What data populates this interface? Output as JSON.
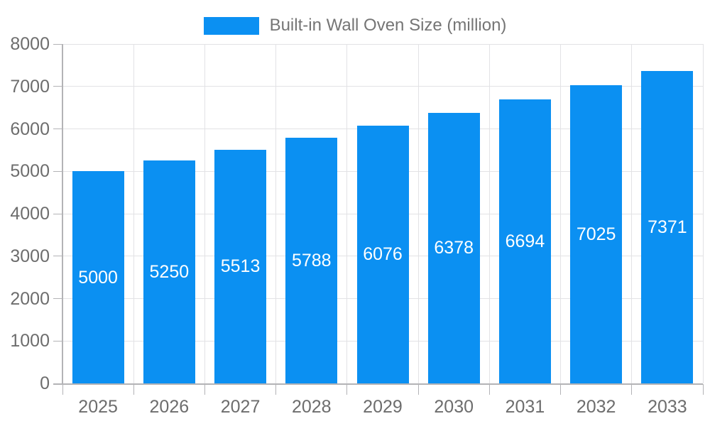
{
  "chart_data": {
    "type": "bar",
    "title": "",
    "legend": "Built-in Wall Oven Size (million)",
    "legend_position": "top",
    "categories": [
      "2025",
      "2026",
      "2027",
      "2028",
      "2029",
      "2030",
      "2031",
      "2032",
      "2033"
    ],
    "values": [
      5000,
      5250,
      5513,
      5788,
      6076,
      6378,
      6694,
      7025,
      7371
    ],
    "xlabel": "",
    "ylabel": "",
    "ylim": [
      0,
      8000
    ],
    "yticks": [
      0,
      1000,
      2000,
      3000,
      4000,
      5000,
      6000,
      7000,
      8000
    ],
    "grid": true,
    "bar_color": "#0b90f2",
    "value_label_color": "#ffffff",
    "axis_color": "#b3b3b6",
    "grid_color": "#e2e2e5",
    "tick_label_color": "#6d6d6d",
    "legend_text_color": "#757575"
  }
}
